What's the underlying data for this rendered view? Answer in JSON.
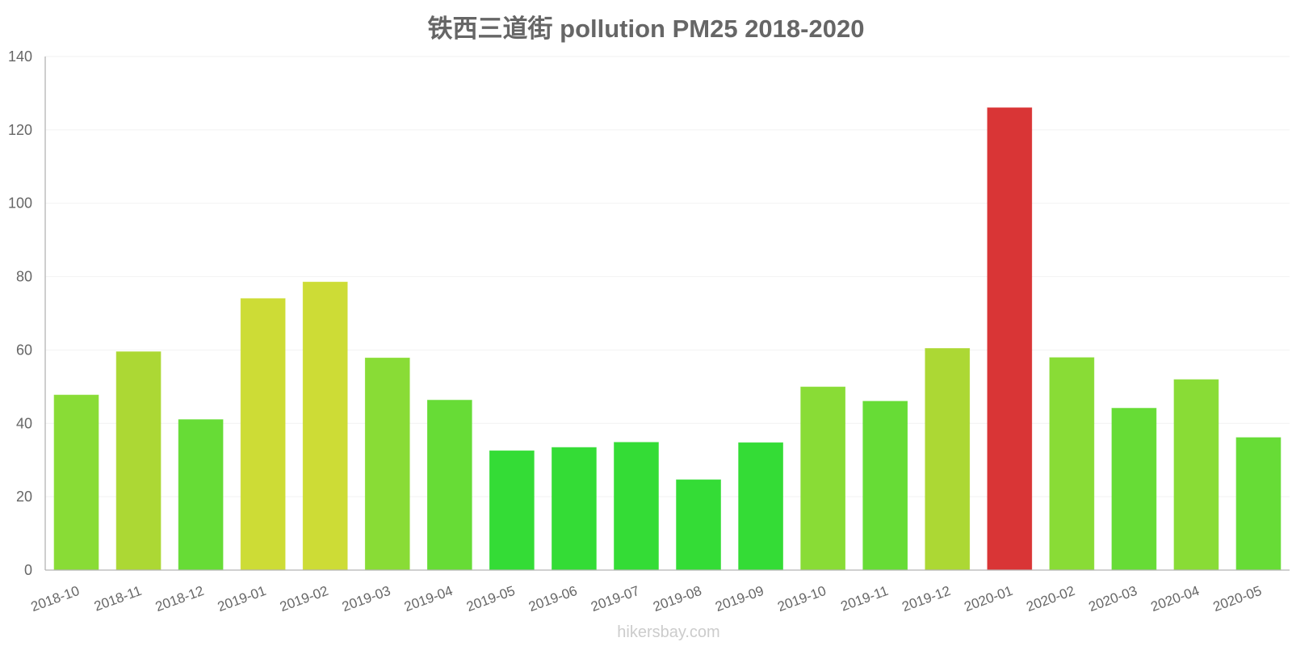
{
  "chart_data": {
    "type": "bar",
    "title": "铁西三道街 pollution PM25 2018-2020",
    "xlabel": "",
    "ylabel": "",
    "ylim": [
      0,
      140
    ],
    "yticks": [
      0,
      20,
      40,
      60,
      80,
      100,
      120,
      140
    ],
    "grid": true,
    "legend": "none",
    "categories": [
      "2018-10",
      "2018-11",
      "2018-12",
      "2019-01",
      "2019-02",
      "2019-03",
      "2019-04",
      "2019-05",
      "2019-06",
      "2019-07",
      "2019-08",
      "2019-09",
      "2019-10",
      "2019-11",
      "2019-12",
      "2020-01",
      "2020-02",
      "2020-03",
      "2020-04",
      "2020-05"
    ],
    "values": [
      47.7,
      59.5,
      41,
      74,
      78.5,
      57.8,
      46.3,
      32.5,
      33.4,
      34.8,
      24.6,
      34.7,
      49.9,
      46,
      60.4,
      126,
      57.9,
      44.1,
      51.9,
      36.1
    ],
    "bar_colors": [
      "#89dc36",
      "#acd834",
      "#67dc36",
      "#cddc36",
      "#cddc36",
      "#89dc36",
      "#67dc36",
      "#34dc36",
      "#34dc36",
      "#34dc36",
      "#34dc36",
      "#34dc36",
      "#89dc36",
      "#67dc36",
      "#acd834",
      "#d93536",
      "#89dc36",
      "#67dc36",
      "#89dc36",
      "#67dc36"
    ]
  },
  "watermark": "hikersbay.com",
  "colors": {
    "text": "#666666",
    "axis": "#b3b3b3",
    "grid": "#f2f2f2",
    "watermark": "#cccccc"
  }
}
